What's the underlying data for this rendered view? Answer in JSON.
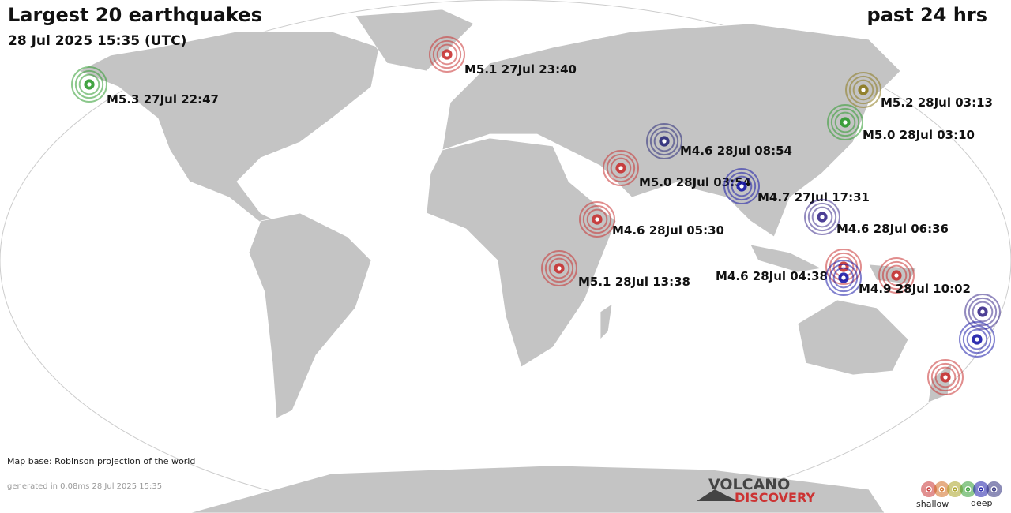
{
  "header": {
    "title": "Largest 20 earthquakes",
    "period": "past 24 hrs",
    "timestamp": "28 Jul 2025 15:35 (UTC)"
  },
  "quakes": [
    {
      "label": "M5.3 27Jul 22:47",
      "color": "#2e9a2e"
    },
    {
      "label": "M5.1 27Jul 23:40",
      "color": "#c83232"
    },
    {
      "label": "M5.2 28Jul 03:13",
      "color": "#8c7a1e"
    },
    {
      "label": "M5.0 28Jul 03:10",
      "color": "#2e9a2e"
    },
    {
      "label": "M4.6 28Jul 08:54",
      "color": "#2a2a7a"
    },
    {
      "label": "M5.0 28Jul 03:54",
      "color": "#c83232"
    },
    {
      "label": "M4.7 27Jul 17:31",
      "color": "#1a1aa8"
    },
    {
      "label": "M4.6 28Jul 06:36",
      "color": "#3a2a8a"
    },
    {
      "label": "M4.6 28Jul 05:30",
      "color": "#c83232"
    },
    {
      "label": "M5.1 28Jul 13:38",
      "color": "#c83232"
    },
    {
      "label": "M4.6 28Jul 04:38",
      "color": "#c83232"
    },
    {
      "label": null,
      "color": "#1a1aa8"
    },
    {
      "label": "M4.9 28Jul 10:02",
      "color": "#c83232"
    },
    {
      "label": null,
      "color": "#3a2a8a"
    },
    {
      "label": null,
      "color": "#1a1aa8"
    },
    {
      "label": null,
      "color": "#c83232"
    }
  ],
  "footer": {
    "map_base": "Map base: Robinson projection of the world",
    "generated": "generated in 0.08ms 28 Jul 2025 15:35"
  },
  "logo": {
    "line1": "VOLCANO",
    "line2": "DISCOVERY"
  },
  "legend": {
    "colors": [
      "#c83232",
      "#d2691e",
      "#a8a020",
      "#2e9a2e",
      "#1a1aa8",
      "#2a2a7a"
    ],
    "shallow": "shallow",
    "deep": "deep"
  }
}
